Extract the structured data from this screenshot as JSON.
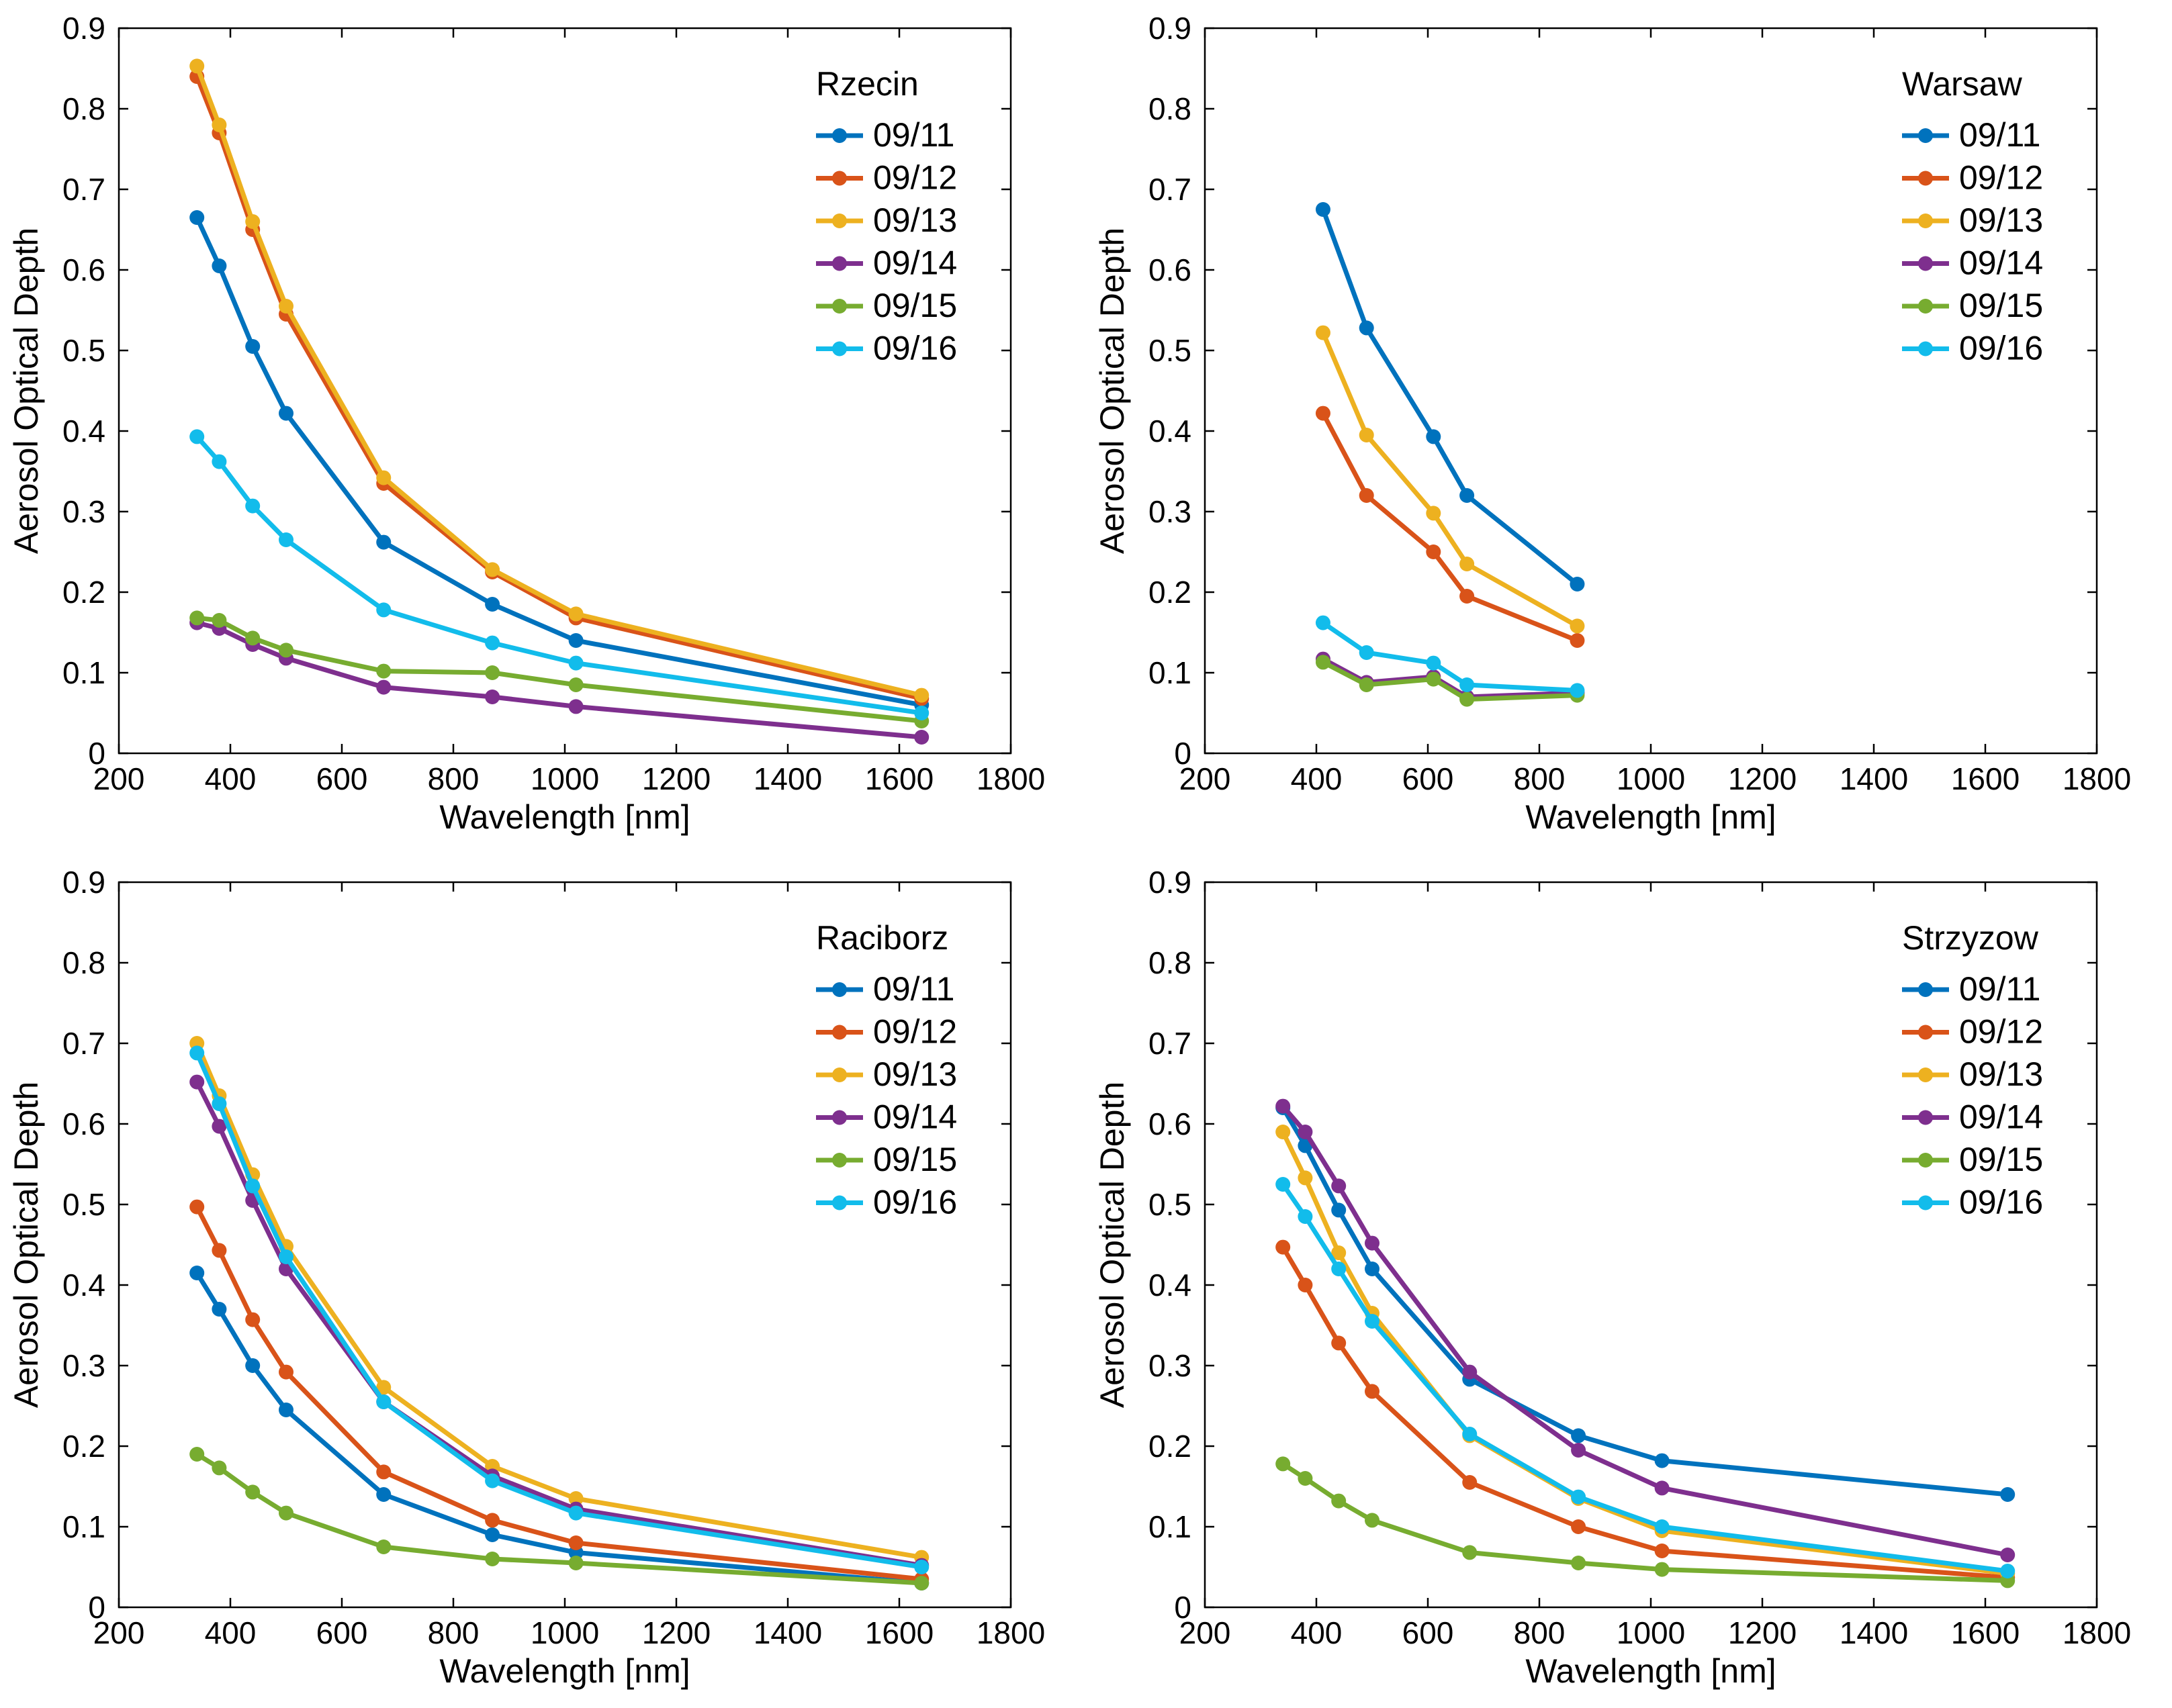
{
  "chart_data": [
    {
      "type": "line",
      "title": "Rzecin",
      "xlabel": "Wavelength [nm]",
      "ylabel": "Aerosol Optical Depth",
      "xlim": [
        200,
        1800
      ],
      "ylim": [
        0,
        0.9
      ],
      "xticks": [
        200,
        400,
        600,
        800,
        1000,
        1200,
        1400,
        1600,
        1800
      ],
      "yticks": [
        0,
        0.1,
        0.2,
        0.3,
        0.4,
        0.5,
        0.6,
        0.7,
        0.8,
        0.9
      ],
      "legend_position": "top-right",
      "series": [
        {
          "name": "09/11",
          "color": "#0072BD",
          "x": [
            340,
            380,
            440,
            500,
            675,
            870,
            1020,
            1640
          ],
          "y": [
            0.665,
            0.605,
            0.505,
            0.422,
            0.262,
            0.185,
            0.14,
            0.06
          ]
        },
        {
          "name": "09/12",
          "color": "#D95319",
          "x": [
            340,
            380,
            440,
            500,
            675,
            870,
            1020,
            1640
          ],
          "y": [
            0.84,
            0.77,
            0.65,
            0.545,
            0.335,
            0.225,
            0.168,
            0.068
          ]
        },
        {
          "name": "09/13",
          "color": "#EDB120",
          "x": [
            340,
            380,
            440,
            500,
            675,
            870,
            1020,
            1640
          ],
          "y": [
            0.853,
            0.78,
            0.66,
            0.555,
            0.342,
            0.228,
            0.173,
            0.072
          ]
        },
        {
          "name": "09/14",
          "color": "#7E2F8E",
          "x": [
            340,
            380,
            440,
            500,
            675,
            870,
            1020,
            1640
          ],
          "y": [
            0.162,
            0.155,
            0.135,
            0.118,
            0.082,
            0.07,
            0.058,
            0.02
          ]
        },
        {
          "name": "09/15",
          "color": "#77AC30",
          "x": [
            340,
            380,
            440,
            500,
            675,
            870,
            1020,
            1640
          ],
          "y": [
            0.168,
            0.165,
            0.143,
            0.128,
            0.102,
            0.1,
            0.085,
            0.04
          ]
        },
        {
          "name": "09/16",
          "color": "#12BCEB",
          "x": [
            340,
            380,
            440,
            500,
            675,
            870,
            1020,
            1640
          ],
          "y": [
            0.393,
            0.362,
            0.307,
            0.265,
            0.178,
            0.137,
            0.112,
            0.05
          ]
        }
      ]
    },
    {
      "type": "line",
      "title": "Warsaw",
      "xlabel": "Wavelength [nm]",
      "ylabel": "Aerosol Optical Depth",
      "xlim": [
        200,
        1800
      ],
      "ylim": [
        0,
        0.9
      ],
      "xticks": [
        200,
        400,
        600,
        800,
        1000,
        1200,
        1400,
        1600,
        1800
      ],
      "yticks": [
        0,
        0.1,
        0.2,
        0.3,
        0.4,
        0.5,
        0.6,
        0.7,
        0.8,
        0.9
      ],
      "legend_position": "top-right",
      "series": [
        {
          "name": "09/11",
          "color": "#0072BD",
          "x": [
            412,
            490,
            610,
            670,
            868
          ],
          "y": [
            0.675,
            0.528,
            0.393,
            0.32,
            0.21
          ]
        },
        {
          "name": "09/12",
          "color": "#D95319",
          "x": [
            412,
            490,
            610,
            670,
            868
          ],
          "y": [
            0.422,
            0.32,
            0.25,
            0.195,
            0.14
          ]
        },
        {
          "name": "09/13",
          "color": "#EDB120",
          "x": [
            412,
            490,
            610,
            670,
            868
          ],
          "y": [
            0.522,
            0.395,
            0.298,
            0.235,
            0.158
          ]
        },
        {
          "name": "09/14",
          "color": "#7E2F8E",
          "x": [
            412,
            490,
            610,
            670,
            868
          ],
          "y": [
            0.117,
            0.088,
            0.095,
            0.07,
            0.075
          ]
        },
        {
          "name": "09/15",
          "color": "#77AC30",
          "x": [
            412,
            490,
            610,
            670,
            868
          ],
          "y": [
            0.113,
            0.085,
            0.092,
            0.067,
            0.072
          ]
        },
        {
          "name": "09/16",
          "color": "#12BCEB",
          "x": [
            412,
            490,
            610,
            670,
            868
          ],
          "y": [
            0.162,
            0.125,
            0.112,
            0.085,
            0.078
          ]
        }
      ]
    },
    {
      "type": "line",
      "title": "Raciborz",
      "xlabel": "Wavelength [nm]",
      "ylabel": "Aerosol Optical Depth",
      "xlim": [
        200,
        1800
      ],
      "ylim": [
        0,
        0.9
      ],
      "xticks": [
        200,
        400,
        600,
        800,
        1000,
        1200,
        1400,
        1600,
        1800
      ],
      "yticks": [
        0,
        0.1,
        0.2,
        0.3,
        0.4,
        0.5,
        0.6,
        0.7,
        0.8,
        0.9
      ],
      "legend_position": "top-right",
      "series": [
        {
          "name": "09/11",
          "color": "#0072BD",
          "x": [
            340,
            380,
            440,
            500,
            675,
            870,
            1020,
            1640
          ],
          "y": [
            0.415,
            0.37,
            0.3,
            0.245,
            0.14,
            0.09,
            0.068,
            0.03
          ]
        },
        {
          "name": "09/12",
          "color": "#D95319",
          "x": [
            340,
            380,
            440,
            500,
            675,
            870,
            1020,
            1640
          ],
          "y": [
            0.497,
            0.443,
            0.357,
            0.292,
            0.168,
            0.108,
            0.08,
            0.035
          ]
        },
        {
          "name": "09/13",
          "color": "#EDB120",
          "x": [
            340,
            380,
            440,
            500,
            675,
            870,
            1020,
            1640
          ],
          "y": [
            0.7,
            0.635,
            0.537,
            0.448,
            0.273,
            0.175,
            0.135,
            0.062
          ]
        },
        {
          "name": "09/14",
          "color": "#7E2F8E",
          "x": [
            340,
            380,
            440,
            500,
            675,
            870,
            1020,
            1640
          ],
          "y": [
            0.652,
            0.597,
            0.505,
            0.42,
            0.255,
            0.163,
            0.122,
            0.052
          ]
        },
        {
          "name": "09/15",
          "color": "#77AC30",
          "x": [
            340,
            380,
            440,
            500,
            675,
            870,
            1020,
            1640
          ],
          "y": [
            0.19,
            0.173,
            0.143,
            0.117,
            0.075,
            0.06,
            0.055,
            0.03
          ]
        },
        {
          "name": "09/16",
          "color": "#12BCEB",
          "x": [
            340,
            380,
            440,
            500,
            675,
            870,
            1020,
            1640
          ],
          "y": [
            0.688,
            0.625,
            0.523,
            0.435,
            0.255,
            0.157,
            0.117,
            0.05
          ]
        }
      ]
    },
    {
      "type": "line",
      "title": "Strzyzow",
      "xlabel": "Wavelength [nm]",
      "ylabel": "Aerosol Optical Depth",
      "xlim": [
        200,
        1800
      ],
      "ylim": [
        0,
        0.9
      ],
      "xticks": [
        200,
        400,
        600,
        800,
        1000,
        1200,
        1400,
        1600,
        1800
      ],
      "yticks": [
        0,
        0.1,
        0.2,
        0.3,
        0.4,
        0.5,
        0.6,
        0.7,
        0.8,
        0.9
      ],
      "legend_position": "top-right",
      "series": [
        {
          "name": "09/11",
          "color": "#0072BD",
          "x": [
            340,
            380,
            440,
            500,
            675,
            870,
            1020,
            1640
          ],
          "y": [
            0.62,
            0.573,
            0.493,
            0.42,
            0.283,
            0.213,
            0.182,
            0.14
          ]
        },
        {
          "name": "09/12",
          "color": "#D95319",
          "x": [
            340,
            380,
            440,
            500,
            675,
            870,
            1020,
            1640
          ],
          "y": [
            0.447,
            0.4,
            0.328,
            0.268,
            0.155,
            0.1,
            0.07,
            0.037
          ]
        },
        {
          "name": "09/13",
          "color": "#EDB120",
          "x": [
            340,
            380,
            440,
            500,
            675,
            870,
            1020,
            1640
          ],
          "y": [
            0.59,
            0.533,
            0.44,
            0.365,
            0.213,
            0.135,
            0.095,
            0.042
          ]
        },
        {
          "name": "09/14",
          "color": "#7E2F8E",
          "x": [
            340,
            380,
            440,
            500,
            675,
            870,
            1020,
            1640
          ],
          "y": [
            0.622,
            0.59,
            0.523,
            0.452,
            0.292,
            0.195,
            0.148,
            0.065
          ]
        },
        {
          "name": "09/15",
          "color": "#77AC30",
          "x": [
            340,
            380,
            440,
            500,
            675,
            870,
            1020,
            1640
          ],
          "y": [
            0.178,
            0.16,
            0.132,
            0.108,
            0.068,
            0.055,
            0.047,
            0.033
          ]
        },
        {
          "name": "09/16",
          "color": "#12BCEB",
          "x": [
            340,
            380,
            440,
            500,
            675,
            870,
            1020,
            1640
          ],
          "y": [
            0.525,
            0.485,
            0.42,
            0.355,
            0.215,
            0.137,
            0.1,
            0.045
          ]
        }
      ]
    }
  ]
}
